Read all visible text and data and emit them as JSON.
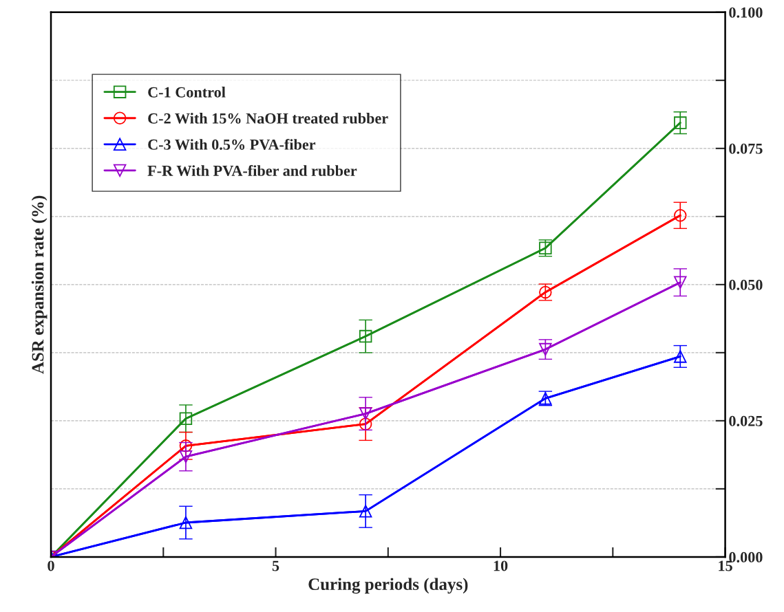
{
  "chart_data": {
    "type": "line",
    "xlabel": "Curing periods (days)",
    "ylabel": "ASR expansion rate (%)",
    "x": [
      0,
      3,
      7,
      11,
      14
    ],
    "series": [
      {
        "name": "C-1 Control",
        "color": "#1a8c1a",
        "marker": "square",
        "values": [
          0,
          0.0254,
          0.0405,
          0.0567,
          0.0797
        ],
        "errors": [
          null,
          0.0025,
          0.003,
          0.0015,
          0.002
        ]
      },
      {
        "name": "C-2 With 15% NaOH treated rubber",
        "color": "#ff0000",
        "marker": "circle",
        "values": [
          0,
          0.0204,
          0.0244,
          0.0486,
          0.0627
        ],
        "errors": [
          null,
          0.0025,
          0.003,
          0.0015,
          0.0024
        ]
      },
      {
        "name": "C-3 With 0.5% PVA-fiber",
        "color": "#0000ff",
        "marker": "triangle",
        "values": [
          0,
          0.0063,
          0.0084,
          0.0291,
          0.0368
        ],
        "errors": [
          null,
          0.003,
          0.003,
          0.0013,
          0.002
        ]
      },
      {
        "name": "F-R With PVA-fiber and rubber",
        "color": "#9900cc",
        "marker": "triangle_down",
        "values": [
          0,
          0.0184,
          0.0263,
          0.0381,
          0.0504
        ],
        "errors": [
          null,
          0.0026,
          0.003,
          0.0018,
          0.0025
        ]
      }
    ],
    "xlim": [
      0,
      15
    ],
    "xticks": [
      0,
      {
        "value": 2.5,
        "label": null
      },
      5,
      {
        "value": 7.5,
        "label": null
      },
      10,
      {
        "value": 12.5,
        "label": null
      },
      15
    ],
    "ylim": [
      0,
      0.1
    ],
    "yticks": [
      {
        "value": 0,
        "label": "0.000"
      },
      {
        "value": 0.0125,
        "label": null
      },
      {
        "value": 0.025,
        "label": "0.025"
      },
      {
        "value": 0.0375,
        "label": null
      },
      {
        "value": 0.05,
        "label": "0.050"
      },
      {
        "value": 0.0625,
        "label": null
      },
      {
        "value": 0.075,
        "label": "0.075"
      },
      {
        "value": 0.0875,
        "label": null
      },
      {
        "value": 0.1,
        "label": "0.100"
      }
    ],
    "grid": "y",
    "legend": "top left",
    "line_style": "solid"
  }
}
